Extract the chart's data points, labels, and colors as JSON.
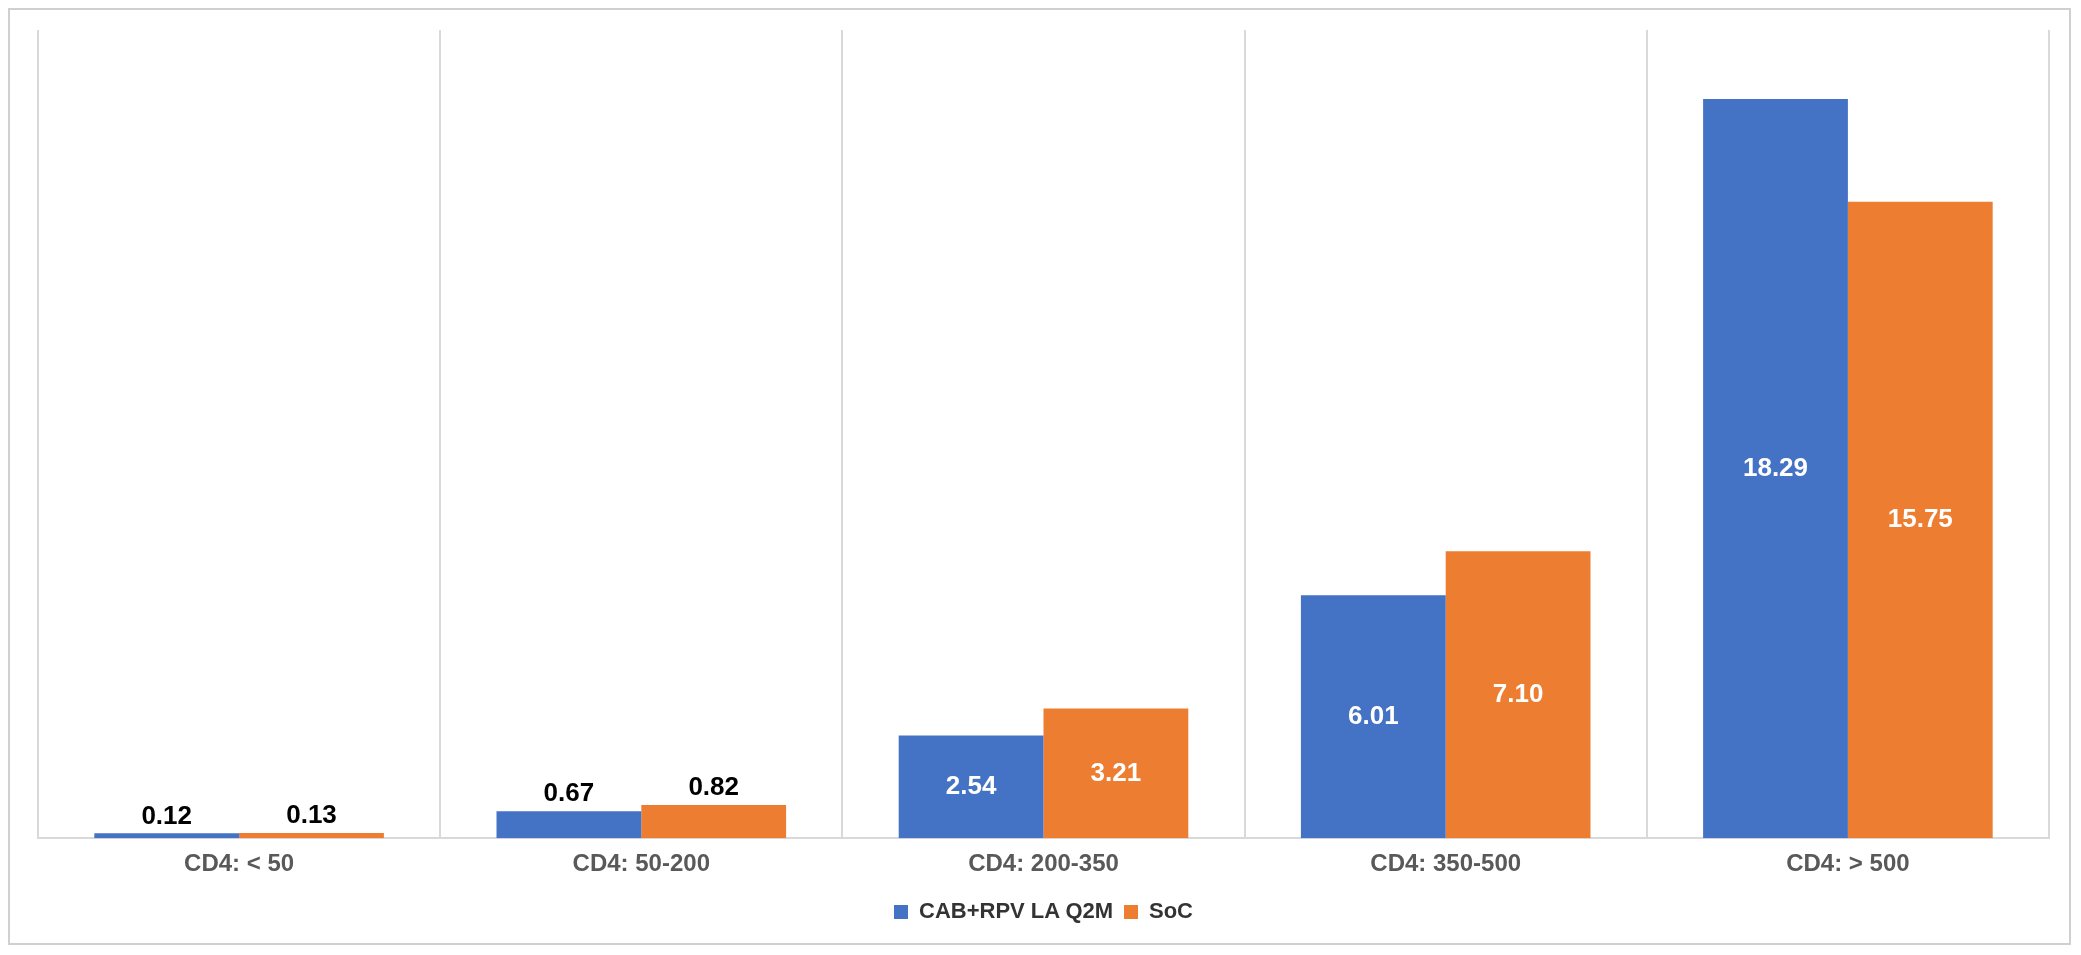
{
  "chart_data": {
    "type": "bar",
    "categories": [
      "CD4: < 50",
      "CD4: 50-200",
      "CD4: 200-350",
      "CD4: 350-500",
      "CD4: > 500"
    ],
    "series": [
      {
        "name": "CAB+RPV LA Q2M",
        "color": "#4472c4",
        "values": [
          0.12,
          0.67,
          2.54,
          6.01,
          18.29
        ],
        "value_labels": [
          "0.12",
          "0.67",
          "2.54",
          "6.01",
          "18.29"
        ]
      },
      {
        "name": "SoC",
        "color": "#ed7d31",
        "values": [
          0.13,
          0.82,
          3.21,
          7.1,
          15.75
        ],
        "value_labels": [
          "0.13",
          "0.82",
          "3.21",
          "7.10",
          "15.75"
        ]
      }
    ],
    "grid": "x",
    "legend": "bottom",
    "tick_labels": "x"
  }
}
